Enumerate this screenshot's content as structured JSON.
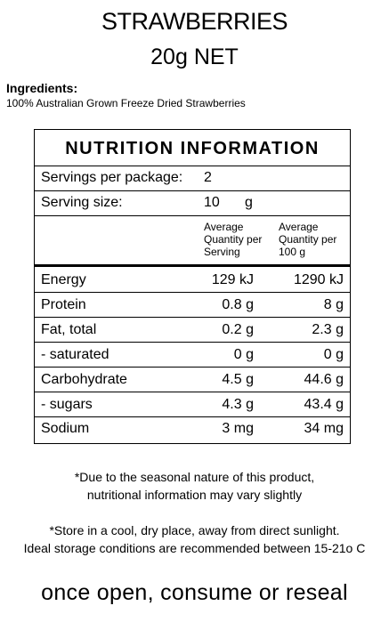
{
  "product": {
    "title": "STRAWBERRIES",
    "net": "20g NET"
  },
  "ingredients": {
    "heading": "Ingredients:",
    "text": "100% Australian Grown Freeze Dried Strawberries"
  },
  "nutrition": {
    "title": "NUTRITION INFORMATION",
    "servings_label": "Servings per package:",
    "servings_value": "2",
    "serving_size_label": "Serving size:",
    "serving_size_value": "10",
    "serving_size_unit": "g",
    "col1_header": [
      "Average",
      "Quantity per",
      "Serving"
    ],
    "col2_header": [
      "Average",
      "Quantity per",
      "100 g"
    ],
    "rows": [
      {
        "label": "Energy",
        "per_serving": "129 kJ",
        "per_100g": "1290 kJ"
      },
      {
        "label": "Protein",
        "per_serving": "0.8 g",
        "per_100g": "8 g"
      },
      {
        "label": "Fat, total",
        "per_serving": "0.2 g",
        "per_100g": "2.3 g"
      },
      {
        "label": "- saturated",
        "per_serving": "0 g",
        "per_100g": "0 g"
      },
      {
        "label": "Carbohydrate",
        "per_serving": "4.5 g",
        "per_100g": "44.6 g"
      },
      {
        "label": "- sugars",
        "per_serving": "4.3 g",
        "per_100g": "43.4 g"
      },
      {
        "label": "Sodium",
        "per_serving": "3 mg",
        "per_100g": "34 mg"
      }
    ]
  },
  "notes": {
    "seasonal_line1": "*Due to the seasonal nature of this product,",
    "seasonal_line2": "nutritional information may vary slightly",
    "storage_line1": "*Store in a cool, dry place, away from direct sunlight.",
    "storage_line2": "Ideal storage conditions are recommended between 15-21o C"
  },
  "footer": "once open, consume or reseal"
}
